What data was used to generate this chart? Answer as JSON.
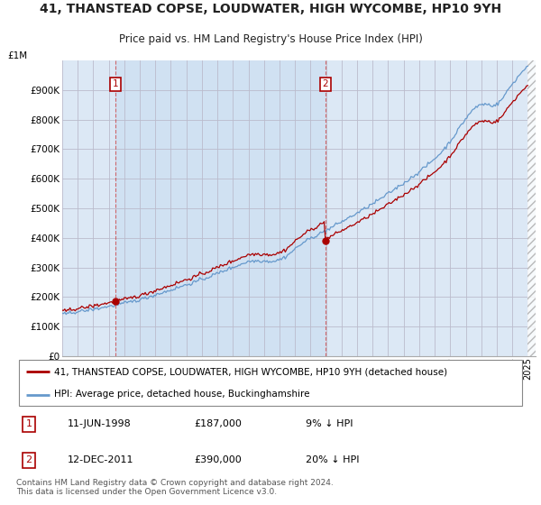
{
  "title": "41, THANSTEAD COPSE, LOUDWATER, HIGH WYCOMBE, HP10 9YH",
  "subtitle": "Price paid vs. HM Land Registry's House Price Index (HPI)",
  "legend_line1": "41, THANSTEAD COPSE, LOUDWATER, HIGH WYCOMBE, HP10 9YH (detached house)",
  "legend_line2": "HPI: Average price, detached house, Buckinghamshire",
  "footnote": "Contains HM Land Registry data © Crown copyright and database right 2024.\nThis data is licensed under the Open Government Licence v3.0.",
  "annotation1": {
    "label": "1",
    "date": "11-JUN-1998",
    "price": "£187,000",
    "pct": "9% ↓ HPI"
  },
  "annotation2": {
    "label": "2",
    "date": "12-DEC-2011",
    "price": "£390,000",
    "pct": "20% ↓ HPI"
  },
  "price_color": "#aa0000",
  "hpi_color": "#6699cc",
  "sale1_year": 1998.44,
  "sale2_year": 2011.95,
  "sale1_price": 187000,
  "sale2_price": 390000,
  "ylim": [
    0,
    1000000
  ],
  "yticks": [
    0,
    100000,
    200000,
    300000,
    400000,
    500000,
    600000,
    700000,
    800000,
    900000
  ],
  "ytick_labels": [
    "£0",
    "£100K",
    "£200K",
    "£300K",
    "£400K",
    "£500K",
    "£600K",
    "£700K",
    "£800K",
    "£900K"
  ],
  "xlim_start": 1995,
  "xlim_end": 2025.5,
  "plot_bg": "#dce8f5",
  "fig_bg": "#ffffff",
  "hatch_area_color": "#dce8f5",
  "shade_between_color": "#c8dff0"
}
